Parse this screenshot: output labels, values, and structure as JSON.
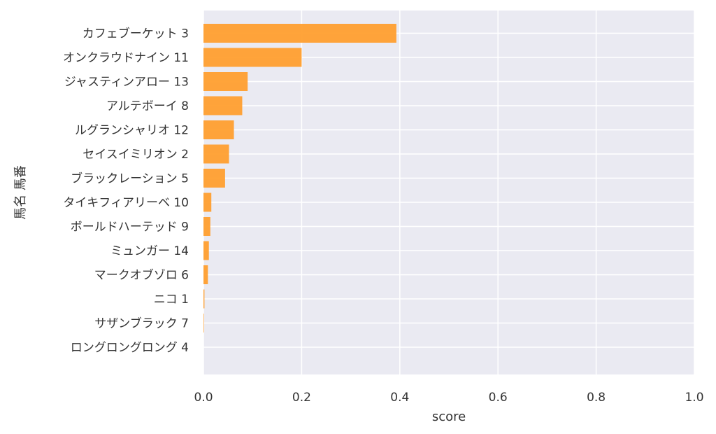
{
  "chart_data": {
    "type": "bar",
    "orientation": "horizontal",
    "xlabel": "score",
    "ylabel": "馬名 馬番",
    "xlim": [
      0,
      1.0
    ],
    "xticks": [
      "0.0",
      "0.2",
      "0.4",
      "0.6",
      "0.8",
      "1.0"
    ],
    "grid": true,
    "bar_color": "#ff9f2f",
    "background_color": "#eaeaf2",
    "categories": [
      "カフェブーケット 3",
      "オンクラウドナイン 11",
      "ジャスティンアロー 13",
      "アルテボーイ 8",
      "ルグランシャリオ 12",
      "セイスイミリオン 2",
      "ブラックレーション 5",
      "タイキフィアリーベ 10",
      "ボールドハーテッド 9",
      "ミュンガー 14",
      "マークオブゾロ 6",
      "ニコ 1",
      "サザンブラック 7",
      "ロングロングロング 4"
    ],
    "values": [
      0.393,
      0.2,
      0.09,
      0.079,
      0.062,
      0.052,
      0.044,
      0.016,
      0.014,
      0.011,
      0.009,
      0.002,
      0.001,
      0.0
    ]
  }
}
